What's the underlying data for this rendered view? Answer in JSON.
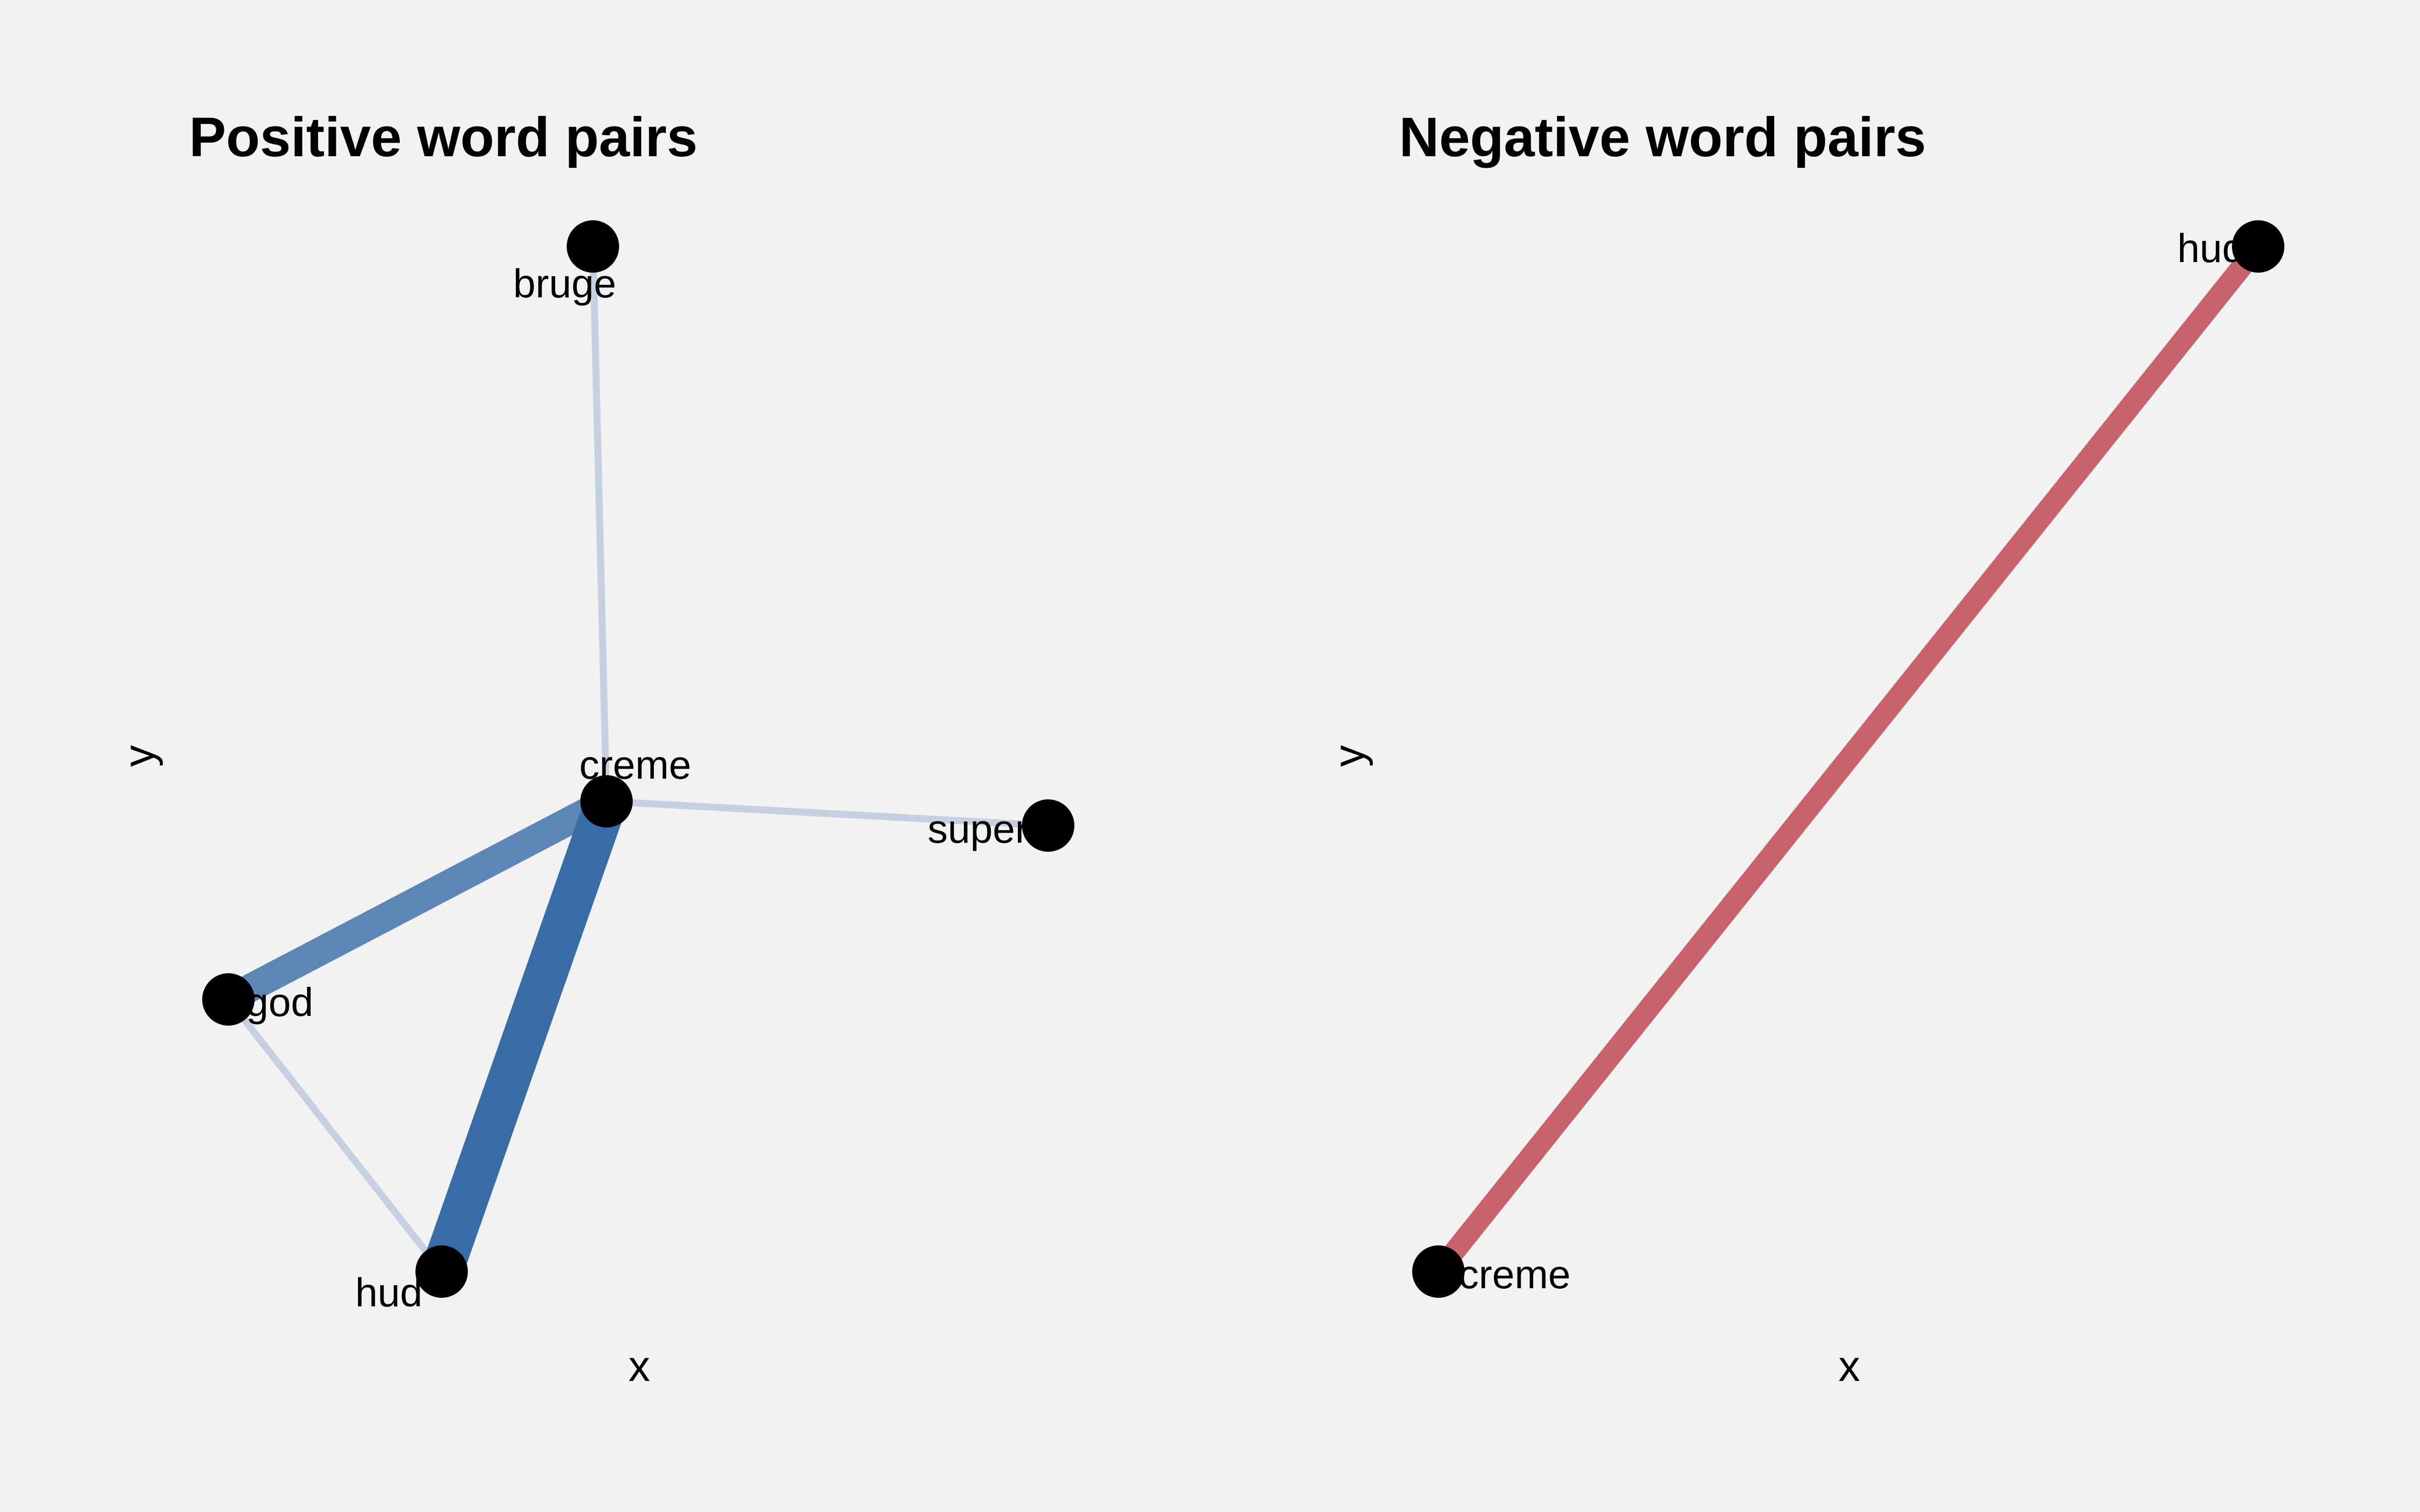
{
  "panels": [
    {
      "title": "Positive word pairs",
      "xlabel": "x",
      "ylabel": "y",
      "nodes": [
        "bruge",
        "creme",
        "super",
        "god",
        "hud"
      ],
      "edges": [
        {
          "from": "bruge",
          "to": "creme",
          "strength": 1,
          "color": "#c5d1e0"
        },
        {
          "from": "creme",
          "to": "super",
          "strength": 1,
          "color": "#c5d1e0"
        },
        {
          "from": "god",
          "to": "hud",
          "strength": 1,
          "color": "#c5d1e0"
        },
        {
          "from": "creme",
          "to": "god",
          "strength": 4,
          "color": "#5b86b5"
        },
        {
          "from": "creme",
          "to": "hud",
          "strength": 6,
          "color": "#376ca4"
        }
      ]
    },
    {
      "title": "Negative word pairs",
      "xlabel": "x",
      "ylabel": "y",
      "nodes": [
        "hud",
        "creme"
      ],
      "edges": [
        {
          "from": "creme",
          "to": "hud",
          "strength": 3,
          "color": "#c8636b"
        }
      ]
    }
  ],
  "colors": {
    "background": "#f2f2f2",
    "node": "#000000"
  }
}
